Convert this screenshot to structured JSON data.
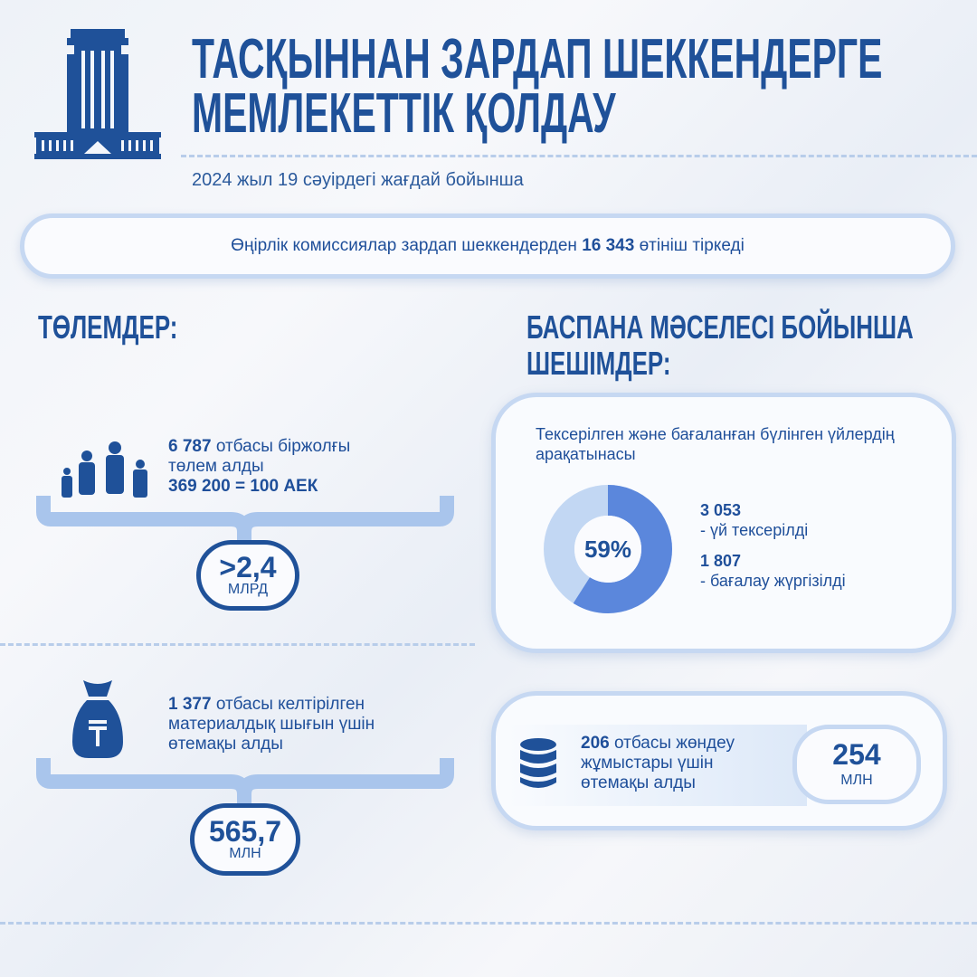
{
  "header": {
    "title_line1": "ТАСҚЫННАН ЗАРДАП ШЕККЕНДЕРГЕ",
    "title_line2": "МЕМЛЕКЕТТІК ҚОЛДАУ",
    "subtitle": "2024 жыл 19 сәуірдегі жағдай бойынша",
    "logo_icon": "government-building-icon"
  },
  "banner": {
    "before": "Өңірлік комиссиялар зардап шеккендерден ",
    "number": "16 343",
    "after": " өтініш тіркеді"
  },
  "payments": {
    "heading": "ТӨЛЕМДЕР:",
    "item1": {
      "number": "6 787",
      "text1": " отбасы біржолғы",
      "text2": "төлем алды",
      "text3": "369 200  = 100 АЕК",
      "badge_value": ">2,4",
      "badge_unit": "МЛРД",
      "icon": "family-icon"
    },
    "item2": {
      "number": "1 377",
      "text1": " отбасы келтірілген",
      "text2": "материалдық шығын үшін",
      "text3": "өтемақы алды",
      "badge_value": "565,7",
      "badge_unit": "МЛН",
      "icon": "tenge-money-bag-icon"
    }
  },
  "housing": {
    "heading_line1": "БАСПАНА МӘСЕЛЕСІ БОЙЫНША",
    "heading_line2": "ШЕШІМДЕР:",
    "chart_card": {
      "title": "Тексерілген және бағаланған бүлінген үйлердің арақатынасы",
      "percent_label": "59%",
      "stat1_value": "3 053",
      "stat1_label": "- үй тексерілді",
      "stat2_value": "1 807",
      "stat2_label": "- бағалау жүргізілді"
    },
    "repair": {
      "number": "206",
      "text1": " отбасы жөндеу",
      "text2": "жұмыстары үшін",
      "text3": "өтемақы алды",
      "badge_value": "254",
      "badge_unit": "МЛН",
      "icon": "coin-stack-icon"
    }
  },
  "colors": {
    "primary": "#1f5199",
    "donut_filled": "#5b87dc",
    "donut_rest": "#c2d7f3",
    "border": "#c6d8f2"
  },
  "chart_data": {
    "type": "pie",
    "values": [
      59,
      41
    ],
    "center_label": "59%",
    "title": "Тексерілген және бағаланған бүлінген үйлердің арақатынасы"
  }
}
